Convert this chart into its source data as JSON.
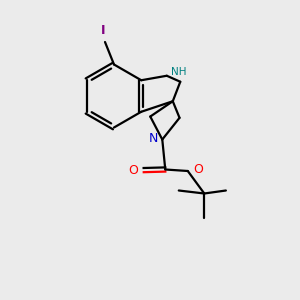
{
  "background_color": "#ebebeb",
  "bond_color": "#000000",
  "N_color": "#0000cc",
  "NH_color": "#008080",
  "O_color": "#ff0000",
  "I_color": "#800080",
  "figsize": [
    3.0,
    3.0
  ],
  "dpi": 100,
  "xlim": [
    0,
    10
  ],
  "ylim": [
    0,
    10
  ]
}
